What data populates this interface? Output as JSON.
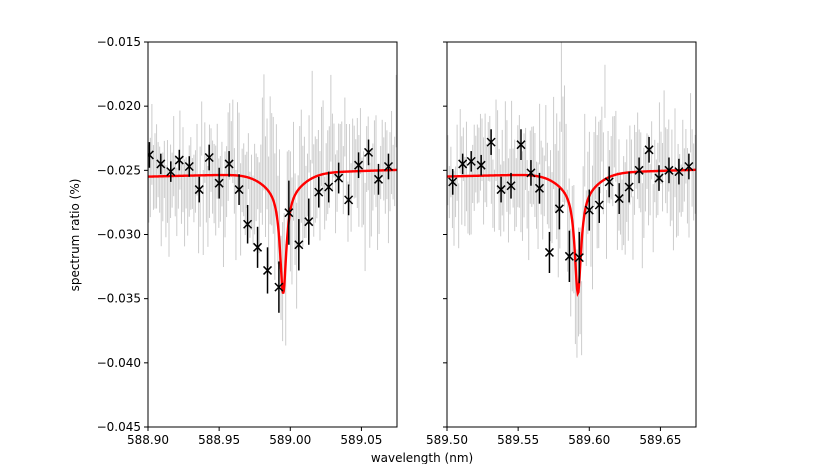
{
  "chart_data": {
    "type": "scatter",
    "ylabel": "spectrum ratio (%)",
    "xlabel": "wavelength (nm)",
    "ylim": [
      -0.045,
      -0.015
    ],
    "yticks": [
      "−0.015",
      "−0.020",
      "−0.025",
      "−0.030",
      "−0.035",
      "−0.040",
      "−0.045"
    ],
    "shared_y": true,
    "colors": {
      "raw": "#cccccc",
      "binned": "#000000",
      "model": "#ff0000"
    },
    "panels": [
      {
        "xlim": [
          588.9,
          589.075
        ],
        "xticks": [
          {
            "v": 588.9,
            "label": "588.90"
          },
          {
            "v": 588.95,
            "label": "588.95"
          },
          {
            "v": 589.0,
            "label": "589.00"
          },
          {
            "v": 589.05,
            "label": "589.05"
          }
        ],
        "line_center": 588.995,
        "binned": [
          {
            "x": 588.901,
            "y": -0.0238,
            "err": 0.001
          },
          {
            "x": 588.909,
            "y": -0.0245,
            "err": 0.0008
          },
          {
            "x": 588.916,
            "y": -0.0251,
            "err": 0.0008
          },
          {
            "x": 588.922,
            "y": -0.0242,
            "err": 0.0008
          },
          {
            "x": 588.929,
            "y": -0.0247,
            "err": 0.0008
          },
          {
            "x": 588.936,
            "y": -0.0265,
            "err": 0.001
          },
          {
            "x": 588.943,
            "y": -0.024,
            "err": 0.001
          },
          {
            "x": 588.95,
            "y": -0.026,
            "err": 0.0012
          },
          {
            "x": 588.957,
            "y": -0.0245,
            "err": 0.001
          },
          {
            "x": 588.964,
            "y": -0.0265,
            "err": 0.0012
          },
          {
            "x": 588.97,
            "y": -0.0292,
            "err": 0.0015
          },
          {
            "x": 588.977,
            "y": -0.031,
            "err": 0.0016
          },
          {
            "x": 588.984,
            "y": -0.0328,
            "err": 0.0018
          },
          {
            "x": 588.992,
            "y": -0.0341,
            "err": 0.002
          },
          {
            "x": 588.999,
            "y": -0.0283,
            "err": 0.0025
          },
          {
            "x": 589.006,
            "y": -0.0308,
            "err": 0.002
          },
          {
            "x": 589.013,
            "y": -0.029,
            "err": 0.0018
          },
          {
            "x": 589.02,
            "y": -0.0267,
            "err": 0.0012
          },
          {
            "x": 589.027,
            "y": -0.0263,
            "err": 0.0012
          },
          {
            "x": 589.034,
            "y": -0.0256,
            "err": 0.0012
          },
          {
            "x": 589.041,
            "y": -0.0273,
            "err": 0.0012
          },
          {
            "x": 589.048,
            "y": -0.0246,
            "err": 0.001
          },
          {
            "x": 589.055,
            "y": -0.0236,
            "err": 0.001
          },
          {
            "x": 589.062,
            "y": -0.0257,
            "err": 0.0012
          },
          {
            "x": 589.069,
            "y": -0.0247,
            "err": 0.001
          }
        ]
      },
      {
        "xlim": [
          589.5,
          589.675
        ],
        "xticks": [
          {
            "v": 589.5,
            "label": "589.50"
          },
          {
            "v": 589.55,
            "label": "589.55"
          },
          {
            "v": 589.6,
            "label": "589.60"
          },
          {
            "v": 589.65,
            "label": "589.65"
          }
        ],
        "line_center": 589.592,
        "binned": [
          {
            "x": 589.504,
            "y": -0.0259,
            "err": 0.001
          },
          {
            "x": 589.511,
            "y": -0.0245,
            "err": 0.0008
          },
          {
            "x": 589.517,
            "y": -0.0243,
            "err": 0.0008
          },
          {
            "x": 589.524,
            "y": -0.0246,
            "err": 0.0008
          },
          {
            "x": 589.531,
            "y": -0.0228,
            "err": 0.001
          },
          {
            "x": 589.538,
            "y": -0.0265,
            "err": 0.001
          },
          {
            "x": 589.545,
            "y": -0.0262,
            "err": 0.001
          },
          {
            "x": 589.552,
            "y": -0.023,
            "err": 0.0012
          },
          {
            "x": 589.559,
            "y": -0.0252,
            "err": 0.001
          },
          {
            "x": 589.565,
            "y": -0.0264,
            "err": 0.0012
          },
          {
            "x": 589.572,
            "y": -0.0314,
            "err": 0.0016
          },
          {
            "x": 589.579,
            "y": -0.028,
            "err": 0.0016
          },
          {
            "x": 589.586,
            "y": -0.0317,
            "err": 0.002
          },
          {
            "x": 589.593,
            "y": -0.0318,
            "err": 0.002
          },
          {
            "x": 589.6,
            "y": -0.0281,
            "err": 0.0016
          },
          {
            "x": 589.607,
            "y": -0.0277,
            "err": 0.0014
          },
          {
            "x": 589.614,
            "y": -0.0259,
            "err": 0.0012
          },
          {
            "x": 589.621,
            "y": -0.0272,
            "err": 0.0012
          },
          {
            "x": 589.628,
            "y": -0.0263,
            "err": 0.0012
          },
          {
            "x": 589.635,
            "y": -0.025,
            "err": 0.001
          },
          {
            "x": 589.642,
            "y": -0.0234,
            "err": 0.001
          },
          {
            "x": 589.649,
            "y": -0.0256,
            "err": 0.001
          },
          {
            "x": 589.656,
            "y": -0.025,
            "err": 0.001
          },
          {
            "x": 589.663,
            "y": -0.0251,
            "err": 0.001
          },
          {
            "x": 589.67,
            "y": -0.0247,
            "err": 0.001
          }
        ]
      }
    ]
  }
}
